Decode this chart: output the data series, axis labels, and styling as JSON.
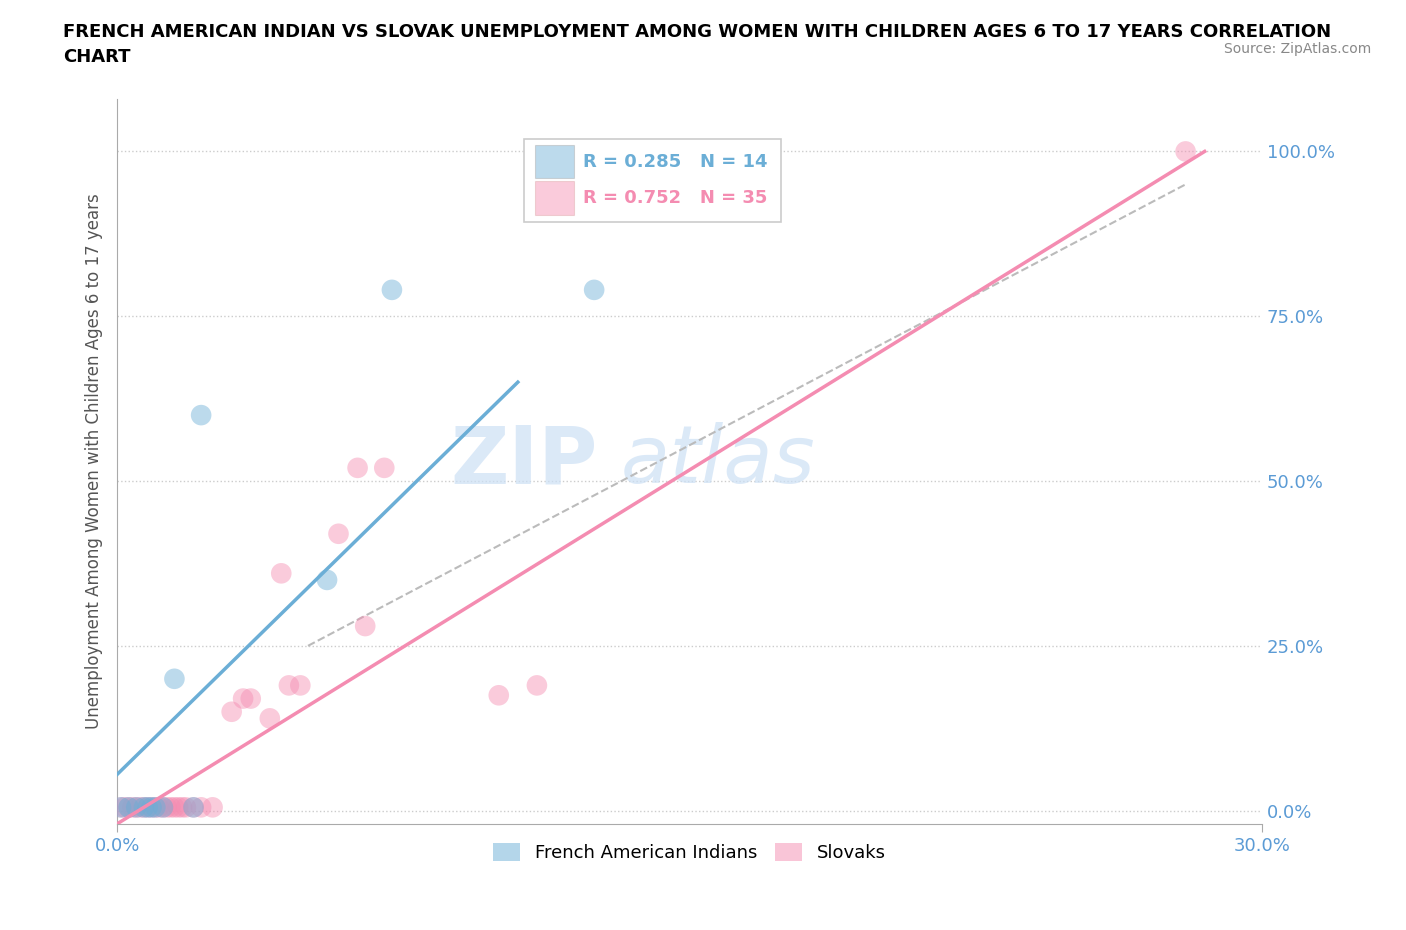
{
  "title_line1": "FRENCH AMERICAN INDIAN VS SLOVAK UNEMPLOYMENT AMONG WOMEN WITH CHILDREN AGES 6 TO 17 YEARS CORRELATION",
  "title_line2": "CHART",
  "source": "Source: ZipAtlas.com",
  "xlabel_bottom_left": "0.0%",
  "xlabel_bottom_right": "30.0%",
  "ylabel": "Unemployment Among Women with Children Ages 6 to 17 years",
  "yaxis_labels": [
    "0.0%",
    "25.0%",
    "50.0%",
    "75.0%",
    "100.0%"
  ],
  "yaxis_values": [
    0.0,
    0.25,
    0.5,
    0.75,
    1.0
  ],
  "xlim": [
    0.0,
    0.3
  ],
  "ylim": [
    -0.02,
    1.08
  ],
  "blue_R": "R = 0.285",
  "blue_N": "N = 14",
  "pink_R": "R = 0.752",
  "pink_N": "N = 35",
  "blue_color": "#6baed6",
  "pink_color": "#f48cb1",
  "blue_scatter": [
    [
      0.001,
      0.005
    ],
    [
      0.003,
      0.005
    ],
    [
      0.005,
      0.005
    ],
    [
      0.007,
      0.005
    ],
    [
      0.008,
      0.005
    ],
    [
      0.009,
      0.005
    ],
    [
      0.01,
      0.005
    ],
    [
      0.012,
      0.005
    ],
    [
      0.015,
      0.2
    ],
    [
      0.02,
      0.005
    ],
    [
      0.022,
      0.6
    ],
    [
      0.055,
      0.35
    ],
    [
      0.072,
      0.79
    ],
    [
      0.125,
      0.79
    ]
  ],
  "pink_scatter": [
    [
      0.001,
      0.005
    ],
    [
      0.002,
      0.005
    ],
    [
      0.003,
      0.005
    ],
    [
      0.004,
      0.005
    ],
    [
      0.005,
      0.005
    ],
    [
      0.006,
      0.005
    ],
    [
      0.007,
      0.005
    ],
    [
      0.008,
      0.005
    ],
    [
      0.009,
      0.005
    ],
    [
      0.01,
      0.005
    ],
    [
      0.011,
      0.005
    ],
    [
      0.012,
      0.005
    ],
    [
      0.013,
      0.005
    ],
    [
      0.014,
      0.005
    ],
    [
      0.015,
      0.005
    ],
    [
      0.016,
      0.005
    ],
    [
      0.017,
      0.005
    ],
    [
      0.018,
      0.005
    ],
    [
      0.02,
      0.005
    ],
    [
      0.022,
      0.005
    ],
    [
      0.025,
      0.005
    ],
    [
      0.03,
      0.15
    ],
    [
      0.033,
      0.17
    ],
    [
      0.035,
      0.17
    ],
    [
      0.04,
      0.14
    ],
    [
      0.043,
      0.36
    ],
    [
      0.045,
      0.19
    ],
    [
      0.048,
      0.19
    ],
    [
      0.058,
      0.42
    ],
    [
      0.063,
      0.52
    ],
    [
      0.065,
      0.28
    ],
    [
      0.07,
      0.52
    ],
    [
      0.1,
      0.175
    ],
    [
      0.11,
      0.19
    ],
    [
      0.28,
      1.0
    ]
  ],
  "blue_line_x": [
    0.0,
    0.105
  ],
  "blue_line_y": [
    0.055,
    0.65
  ],
  "gray_line_x": [
    0.05,
    0.28
  ],
  "gray_line_y": [
    0.25,
    0.95
  ],
  "pink_line_x": [
    0.0,
    0.285
  ],
  "pink_line_y": [
    -0.02,
    1.0
  ],
  "watermark_zip": "ZIP",
  "watermark_atlas": "atlas",
  "legend_labels": [
    "French American Indians",
    "Slovaks"
  ]
}
